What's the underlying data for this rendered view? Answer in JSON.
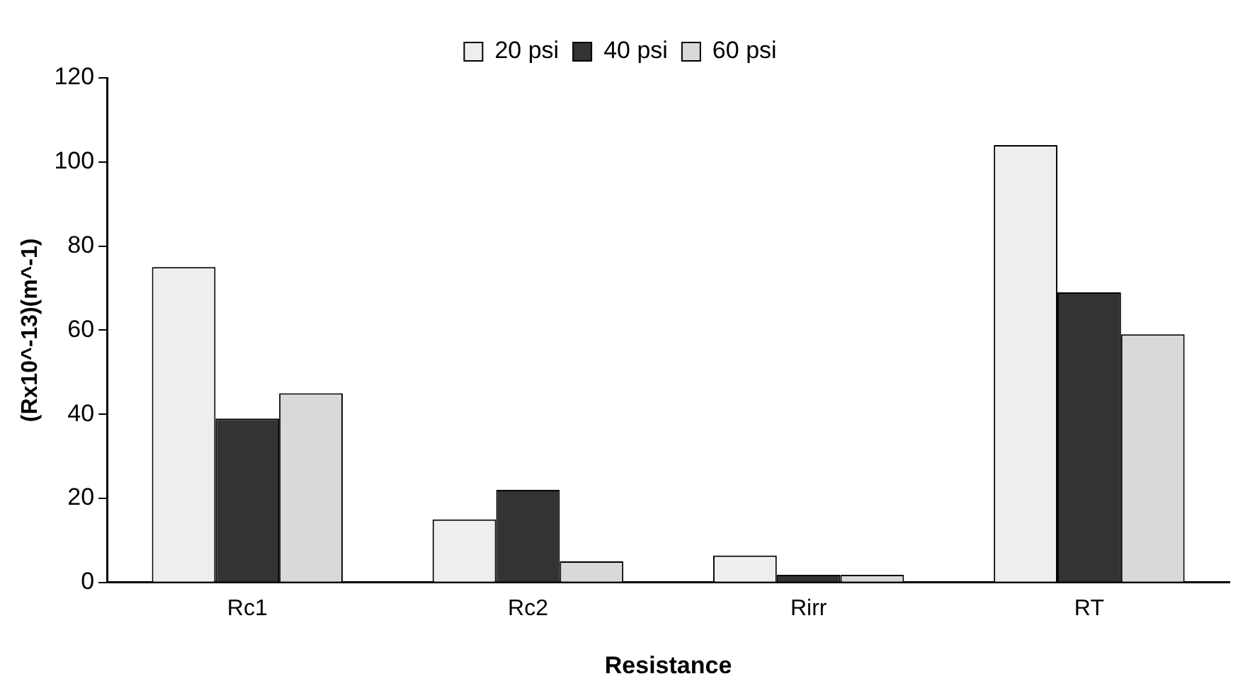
{
  "chart_data": {
    "type": "bar",
    "xlabel": "Resistance",
    "ylabel": "(Rx10^-13)(m^-1)",
    "categories": [
      "Rc1",
      "Rc2",
      "Rirr",
      "RT"
    ],
    "series": [
      {
        "name": "20 psi",
        "color": "#eeeeee",
        "values": [
          75,
          15,
          6.4,
          104
        ]
      },
      {
        "name": "40 psi",
        "color": "#333333",
        "values": [
          39,
          22,
          1.8,
          69
        ]
      },
      {
        "name": "60 psi",
        "color": "#d9d9d9",
        "values": [
          45,
          5,
          1.8,
          59
        ]
      }
    ],
    "ylim": [
      0,
      120
    ],
    "yticks": [
      0,
      20,
      40,
      60,
      80,
      100,
      120
    ],
    "grid": false,
    "legend": "top"
  }
}
